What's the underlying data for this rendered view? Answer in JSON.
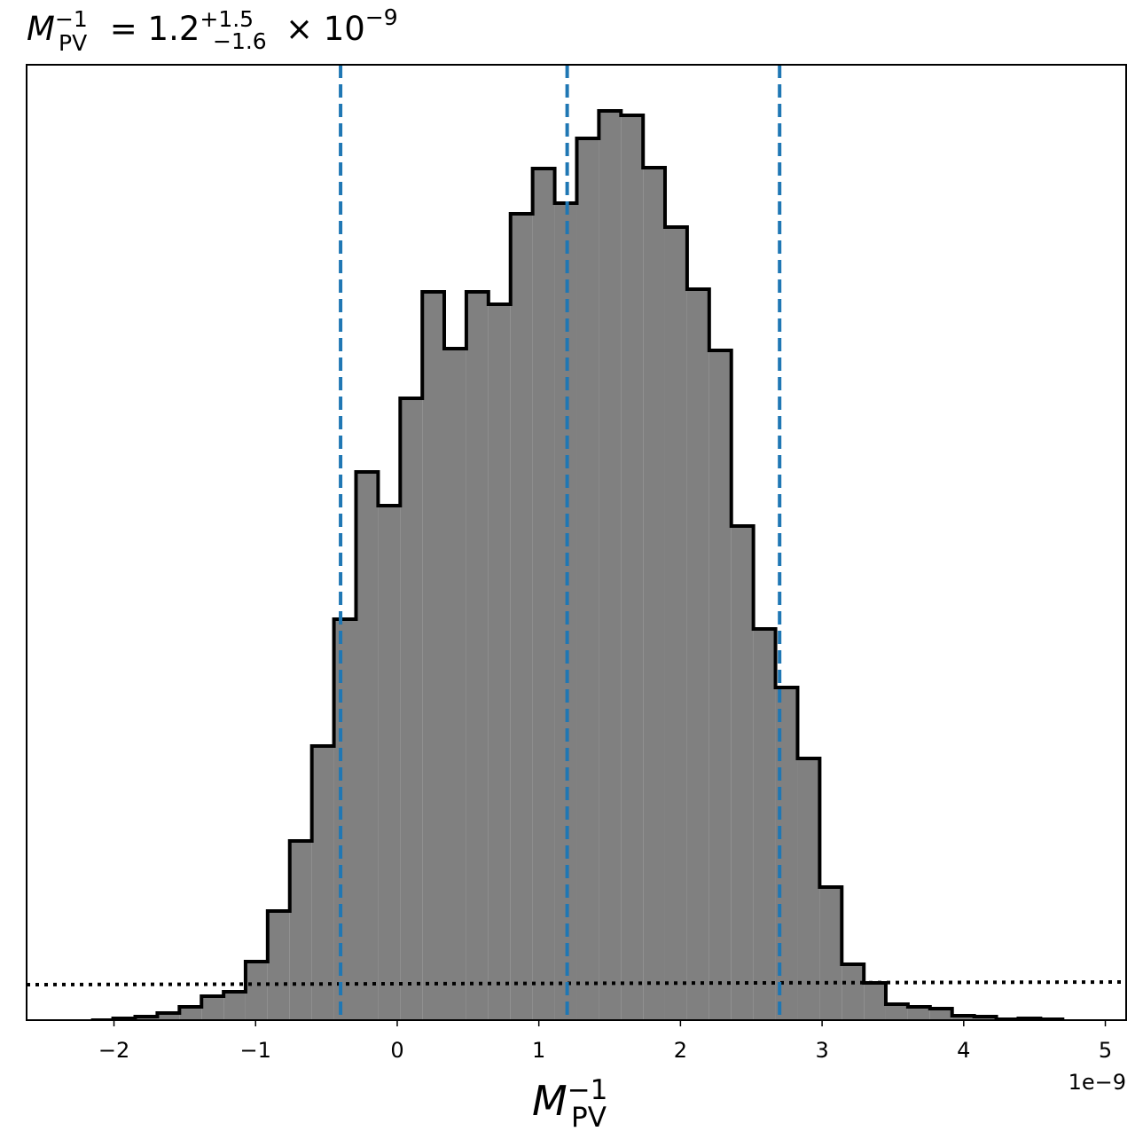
{
  "chart_data": {
    "type": "histogram",
    "title": {
      "symbol": "M",
      "sub": "PV",
      "sup": "−1",
      "eq": " = 1.2",
      "plus": "+1.5",
      "minus": "−1.6",
      "times": "× 10",
      "exp": "−9"
    },
    "x_label": {
      "symbol": "M",
      "sub": "PV",
      "sup": "−1"
    },
    "x_offset_label": "1e−9",
    "bins": [
      -2.162,
      -2.006,
      -1.85,
      -1.694,
      -1.538,
      -1.382,
      -1.226,
      -1.071,
      -0.915,
      -0.759,
      -0.603,
      -0.447,
      -0.291,
      -0.135,
      0.021,
      0.177,
      0.332,
      0.488,
      0.644,
      0.8,
      0.956,
      1.112,
      1.268,
      1.424,
      1.58,
      1.736,
      1.891,
      2.047,
      2.203,
      2.359,
      2.515,
      2.671,
      2.827,
      2.983,
      3.139,
      3.295,
      3.45,
      3.606,
      3.762,
      3.918,
      4.074,
      4.23,
      4.386,
      4.542,
      4.698
    ],
    "values": [
      0,
      2,
      4,
      8,
      15,
      27,
      32,
      66,
      123,
      202,
      309,
      452,
      618,
      580,
      701,
      821,
      757,
      821,
      807,
      909,
      960,
      921,
      994,
      1025,
      1020,
      961,
      894,
      824,
      755,
      557,
      441,
      375,
      295,
      150,
      63,
      42,
      18,
      15,
      13,
      5,
      4,
      1,
      2,
      1
    ],
    "color": "#808080",
    "edge_color": "#000000",
    "xlim": [
      -2.617,
      5.147
    ],
    "ylim": [
      0,
      1077
    ],
    "xticks": [
      {
        "value": -2,
        "label": "−2"
      },
      {
        "value": -1,
        "label": "−1"
      },
      0,
      1,
      2,
      3,
      4,
      5
    ],
    "vlines": {
      "values": [
        -0.4,
        1.2,
        2.7
      ],
      "color": "#1f77b4",
      "style": "dashed"
    },
    "dotted_line": {
      "x": [
        -2.617,
        5.147
      ],
      "y": [
        40,
        43
      ],
      "color": "#000000"
    }
  }
}
